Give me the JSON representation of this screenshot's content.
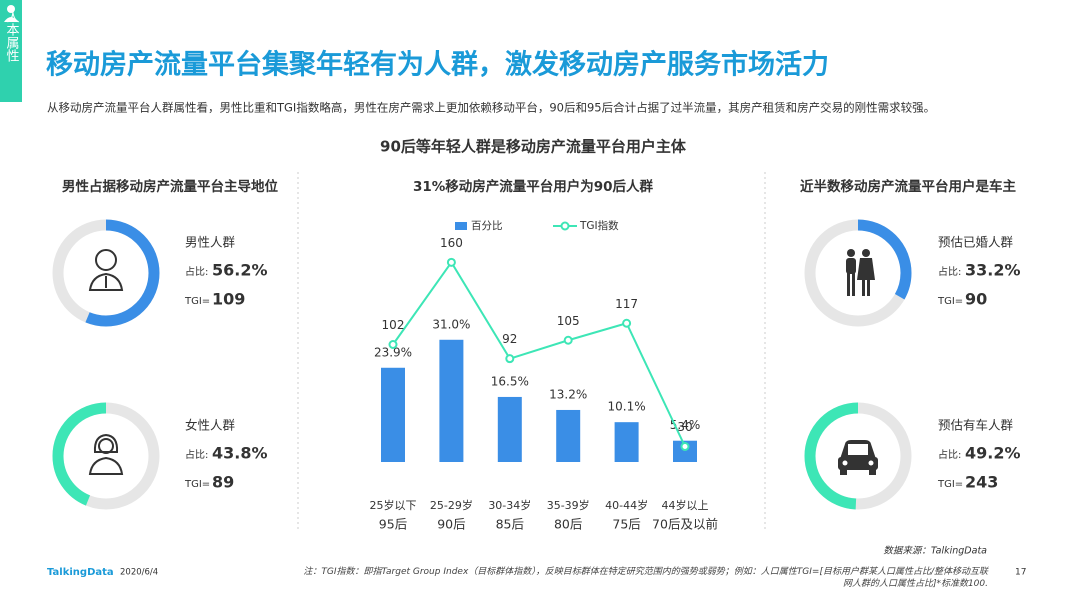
{
  "sidebar_label": "人本属性",
  "title": "移动房产流量平台集聚年轻有为人群，激发移动房产服务市场活力",
  "subtitle": "从移动房产流量平台人群属性看，男性比重和TGI指数略高，男性在房产需求上更加依赖移动平台，90后和95后合计占据了过半流量，其房产租赁和房产交易的刚性需求较强。",
  "section_title": "90后等年轻人群是移动房产流量平台用户主体",
  "chart_data": [
    {
      "type": "donut",
      "title": "男性占据移动房产流量平台主导地位",
      "categories": [
        "男性人群",
        "女性人群"
      ],
      "values": [
        56.2,
        43.8
      ],
      "value_labels": [
        "56.2%",
        "43.8%"
      ],
      "share_label": "占比:",
      "tgi_label": "TGI=",
      "tgi": [
        109,
        89
      ],
      "colors": [
        "#3a8ee6",
        "#3de6b6"
      ]
    },
    {
      "type": "bar_line",
      "title": "31%移动房产流量平台用户为90后人群",
      "legend": "top",
      "categories": [
        "25岁以下",
        "25-29岁",
        "30-34岁",
        "35-39岁",
        "40-44岁",
        "44岁以上"
      ],
      "category_sublabels": [
        "95后",
        "90后",
        "85后",
        "80后",
        "75后",
        "70后及以前"
      ],
      "ylim": [
        0,
        35
      ],
      "y2lim": [
        0,
        180
      ],
      "series": [
        {
          "name": "百分比",
          "color": "#3a8ee6",
          "values": [
            23.9,
            31.0,
            16.5,
            13.2,
            10.1,
            5.4
          ],
          "value_labels": [
            "23.9%",
            "31.0%",
            "16.5%",
            "13.2%",
            "10.1%",
            "5.4%"
          ]
        },
        {
          "name": "TGI指数",
          "color": "#3de6b6",
          "axis": "y2",
          "values": [
            102,
            160,
            92,
            105,
            117,
            30
          ]
        }
      ]
    },
    {
      "type": "donut",
      "title": "近半数移动房产流量平台用户是车主",
      "categories": [
        "预估已婚人群",
        "预估有车人群"
      ],
      "values": [
        33.2,
        49.2
      ],
      "value_labels": [
        "33.2%",
        "49.2%"
      ],
      "share_label": "占比:",
      "tgi_label": "TGI=",
      "tgi": [
        90,
        243
      ],
      "colors": [
        "#3a8ee6",
        "#3de6b6"
      ]
    }
  ],
  "source": "数据来源：TalkingData",
  "note": "注：TGI指数：即指Target Group Index（目标群体指数），反映目标群体在特定研究范围内的强势或弱势；例如：人口属性TGI=[目标用户群某人口属性占比/整体移动互联网人群的人口属性占比]*标准数100.",
  "logo": "TalkingData",
  "date": "2020/6/4",
  "page_number": "17"
}
